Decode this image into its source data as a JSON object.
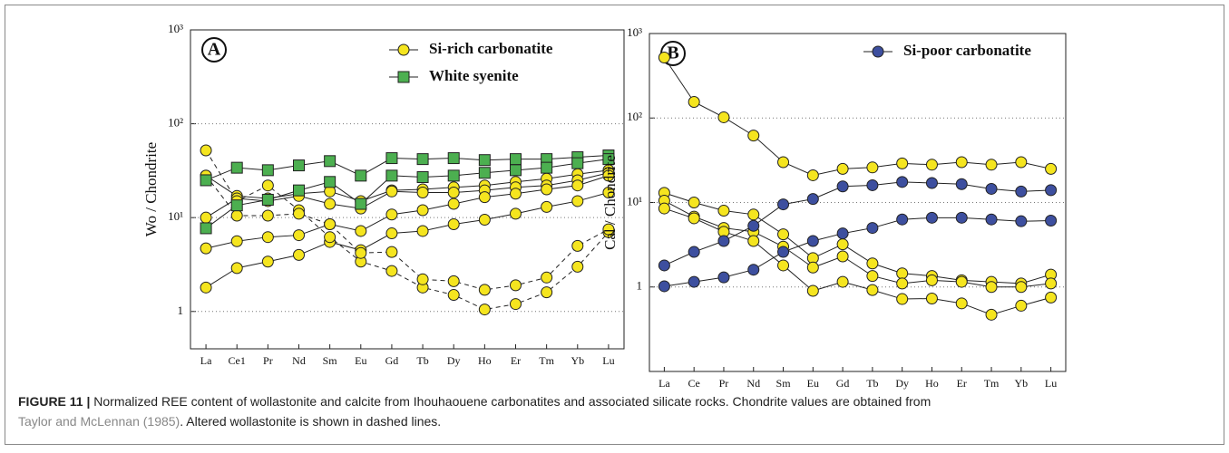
{
  "chart_data": [
    {
      "type": "line",
      "panel": "A",
      "ylabel": "Wo / Chondrite",
      "categories": [
        "La",
        "Ce1",
        "Pr",
        "Nd",
        "Sm",
        "Eu",
        "Gd",
        "Tb",
        "Dy",
        "Ho",
        "Er",
        "Tm",
        "Yb",
        "Lu"
      ],
      "log_scale": true,
      "grid": true,
      "ylim": [
        0.4,
        1000
      ],
      "yticks": [
        1,
        {
          "value": 10,
          "label": "10¹"
        },
        {
          "value": 100,
          "label": "10²"
        },
        {
          "value": 1000,
          "label": "10³"
        }
      ],
      "series": [
        {
          "name": "Si-rich carbonatite",
          "color": "#f5e51f",
          "marker": "circle",
          "lines": [
            {
              "dashed": false,
              "values": [
                28,
                17,
                16,
                18,
                19,
                15,
                19.5,
                20,
                21,
                22,
                24,
                26,
                29,
                32
              ]
            },
            {
              "dashed": false,
              "values": [
                10,
                16,
                15,
                17,
                14,
                12.5,
                19,
                18.5,
                18.5,
                19.5,
                21,
                22,
                25,
                30
              ]
            },
            {
              "dashed": false,
              "values": [
                4.7,
                5.6,
                6.2,
                6.5,
                8.5,
                7.2,
                10.8,
                12,
                14,
                16.5,
                18,
                20,
                22,
                28
              ]
            },
            {
              "dashed": false,
              "values": [
                1.8,
                2.9,
                3.4,
                4,
                5.5,
                4.5,
                6.8,
                7.2,
                8.5,
                9.5,
                11,
                13,
                15,
                18.5
              ]
            },
            {
              "dashed": true,
              "values": [
                52,
                15,
                22,
                12,
                6.2,
                3.4,
                2.7,
                1.8,
                1.5,
                1.05,
                1.2,
                1.6,
                3,
                7
              ]
            },
            {
              "dashed": true,
              "values": [
                28,
                10.5,
                10.5,
                11,
                8.5,
                4.2,
                4.3,
                2.2,
                2.1,
                1.7,
                1.9,
                2.3,
                5,
                7.5
              ]
            }
          ]
        },
        {
          "name": "White syenite",
          "color": "#4caf50",
          "marker": "square",
          "lines": [
            {
              "dashed": false,
              "values": [
                25,
                34,
                32,
                36,
                40,
                28,
                43,
                42,
                43,
                41,
                42,
                42,
                44,
                46
              ]
            },
            {
              "dashed": false,
              "values": [
                7.7,
                13.5,
                15.5,
                19.5,
                24,
                14,
                28,
                27,
                28,
                30,
                32,
                34,
                38,
                42
              ]
            }
          ]
        }
      ]
    },
    {
      "type": "line",
      "panel": "B",
      "ylabel": "Cal / Chondrite",
      "categories": [
        "La",
        "Ce",
        "Pr",
        "Nd",
        "Sm",
        "Eu",
        "Gd",
        "Tb",
        "Dy",
        "Ho",
        "Er",
        "Tm",
        "Yb",
        "Lu"
      ],
      "log_scale": true,
      "grid": true,
      "ylim": [
        0.1,
        1000
      ],
      "yticks": [
        1,
        {
          "value": 10,
          "label": "10¹"
        },
        {
          "value": 100,
          "label": "10²"
        },
        {
          "value": 1000,
          "label": "10³"
        }
      ],
      "series": [
        {
          "name": "Si-rich carbonatite",
          "legend": false,
          "color": "#f5e51f",
          "marker": "circle",
          "lines": [
            {
              "dashed": false,
              "values": [
                520,
                155,
                102,
                62,
                30,
                21,
                25,
                26,
                29,
                28,
                30,
                28,
                30,
                25
              ]
            },
            {
              "dashed": false,
              "values": [
                13,
                10,
                8,
                7.2,
                4.2,
                2.2,
                3.2,
                1.9,
                1.45,
                1.35,
                1.2,
                1.15,
                1.1,
                1.4
              ]
            },
            {
              "dashed": false,
              "values": [
                10.5,
                6.8,
                5,
                4.5,
                3,
                1.7,
                2.3,
                1.35,
                1.1,
                1.2,
                1.15,
                1,
                1,
                1.1
              ]
            },
            {
              "dashed": false,
              "values": [
                8.5,
                6.5,
                4.5,
                3.5,
                1.8,
                0.9,
                1.15,
                0.92,
                0.72,
                0.73,
                0.64,
                0.47,
                0.6,
                0.75
              ]
            }
          ]
        },
        {
          "name": "Si-poor carbonatite",
          "color": "#3d4f9f",
          "marker": "circle",
          "lines": [
            {
              "dashed": false,
              "values": [
                1.8,
                2.6,
                3.5,
                5.3,
                9.5,
                11,
                15.5,
                16,
                17.5,
                17,
                16.5,
                14.5,
                13.5,
                14
              ]
            },
            {
              "dashed": false,
              "values": [
                1.02,
                1.15,
                1.3,
                1.6,
                2.6,
                3.5,
                4.3,
                5,
                6.3,
                6.6,
                6.6,
                6.3,
                6,
                6.1
              ]
            }
          ]
        }
      ]
    }
  ],
  "caption": {
    "label": "FIGURE 11 |",
    "text": " Normalized REE content of wollastonite and calcite from Ihouhaouene carbonatites and associated silicate rocks. Chondrite values are obtained from ",
    "ref": "Taylor and McLennan (1985)",
    "text2": ". Altered wollastonite is shown in dashed lines."
  }
}
